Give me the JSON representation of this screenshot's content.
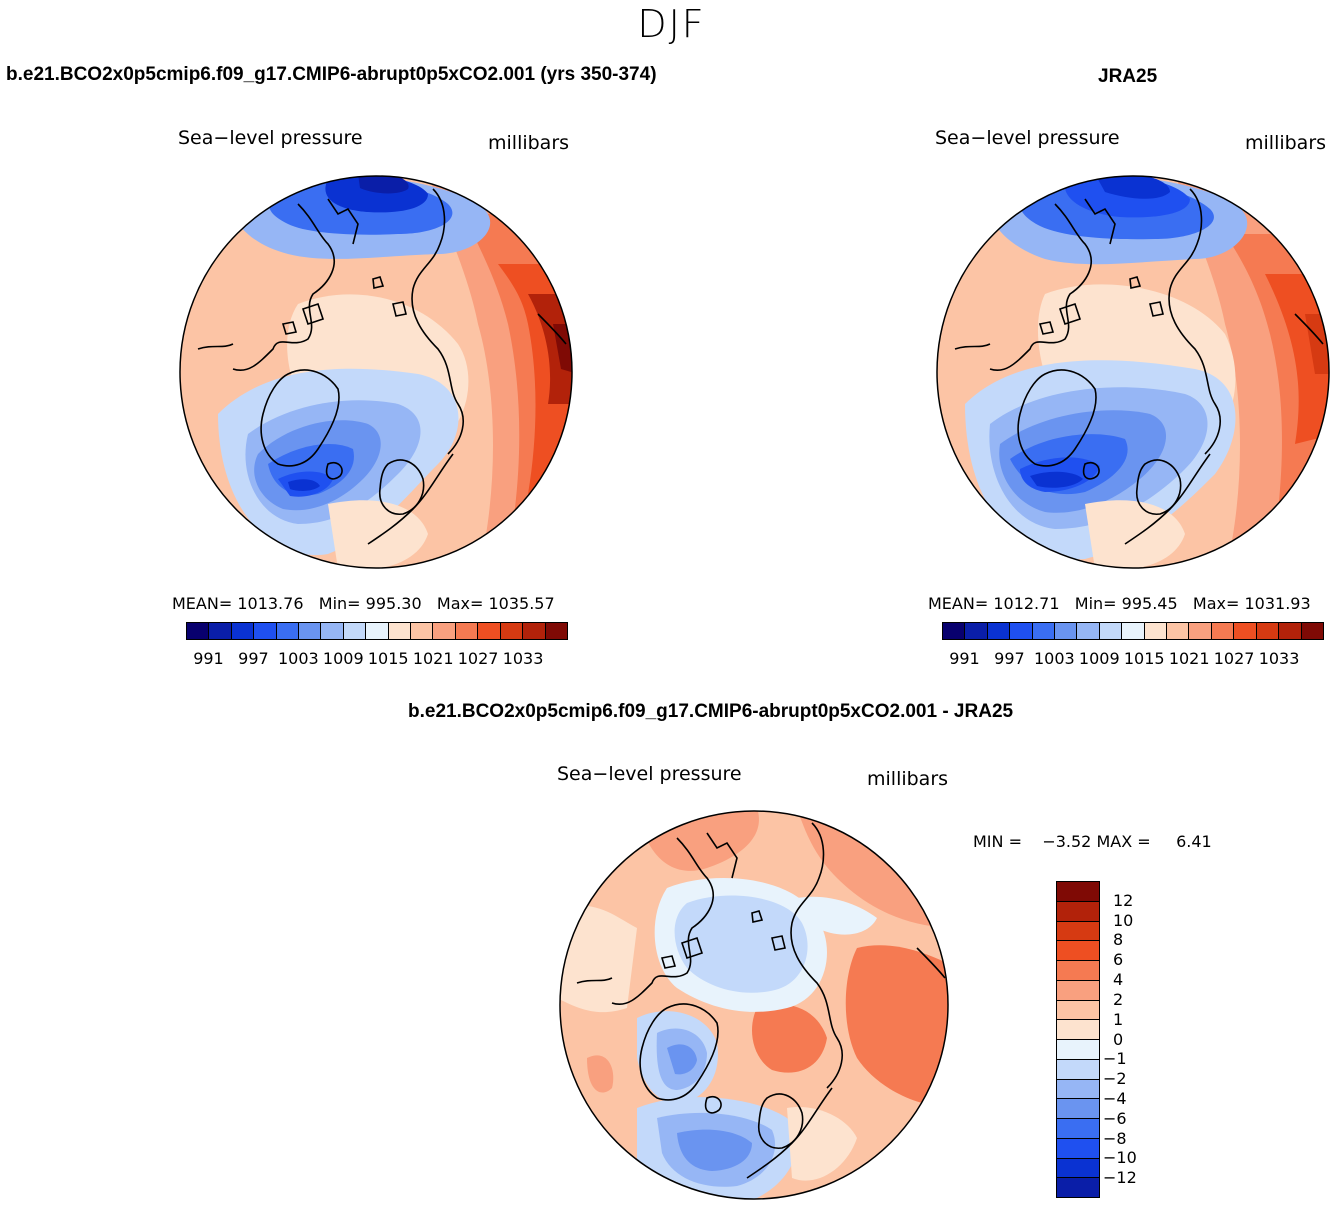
{
  "figure": {
    "season": "DJF",
    "left_title": "b.e21.BCO2x0p5cmip6.f09_g17.CMIP6-abrupt0p5xCO2.001 (yrs 350-374)",
    "right_title": "JRA25",
    "diff_title": "b.e21.BCO2x0p5cmip6.f09_g17.CMIP6-abrupt0p5xCO2.001 - JRA25"
  },
  "chart_data": [
    {
      "type": "heatmap",
      "projection": "polar-stereographic (Northern Hemisphere)",
      "variable": "Sea−level pressure",
      "units": "millibars",
      "stats": {
        "mean_label": "MEAN=",
        "mean": "1013.76",
        "min_label": "Min=",
        "min": "995.30",
        "max_label": "Max=",
        "max": "1035.57"
      },
      "contour_levels": [
        991,
        994,
        997,
        1000,
        1003,
        1006,
        1009,
        1012,
        1015,
        1018,
        1021,
        1024,
        1027,
        1030,
        1033
      ],
      "tick_labels": [
        "991",
        "997",
        "1003",
        "1009",
        "1015",
        "1021",
        "1027",
        "1033"
      ],
      "colors": [
        "#08006e",
        "#0a1ea8",
        "#0a32d2",
        "#1f50f0",
        "#3a6ef2",
        "#6a94f0",
        "#96b6f5",
        "#c3d9fa",
        "#e8f3fc",
        "#fde3cf",
        "#fcc4a5",
        "#f9a07f",
        "#f57a52",
        "#ee4f22",
        "#d63a12",
        "#b2220a",
        "#7f0a05"
      ]
    },
    {
      "type": "heatmap",
      "projection": "polar-stereographic (Northern Hemisphere)",
      "variable": "Sea−level pressure",
      "units": "millibars",
      "stats": {
        "mean_label": "MEAN=",
        "mean": "1012.71",
        "min_label": "Min=",
        "min": "995.45",
        "max_label": "Max=",
        "max": "1031.93"
      },
      "contour_levels": [
        991,
        994,
        997,
        1000,
        1003,
        1006,
        1009,
        1012,
        1015,
        1018,
        1021,
        1024,
        1027,
        1030,
        1033
      ],
      "tick_labels": [
        "991",
        "997",
        "1003",
        "1009",
        "1015",
        "1021",
        "1027",
        "1033"
      ],
      "colors": [
        "#08006e",
        "#0a1ea8",
        "#0a32d2",
        "#1f50f0",
        "#3a6ef2",
        "#6a94f0",
        "#96b6f5",
        "#c3d9fa",
        "#e8f3fc",
        "#fde3cf",
        "#fcc4a5",
        "#f9a07f",
        "#f57a52",
        "#ee4f22",
        "#d63a12",
        "#b2220a",
        "#7f0a05"
      ]
    },
    {
      "type": "heatmap",
      "projection": "polar-stereographic (Northern Hemisphere)",
      "variable": "Sea−level pressure",
      "units": "millibars",
      "stats": {
        "min_label": "MIN =",
        "min": "−3.52",
        "max_label": "MAX =",
        "max": "6.41"
      },
      "contour_levels": [
        -12,
        -10,
        -8,
        -6,
        -4,
        -2,
        -1,
        0,
        1,
        2,
        4,
        6,
        8,
        10,
        12
      ],
      "tick_labels": [
        "12",
        "10",
        "8",
        "6",
        "4",
        "2",
        "1",
        "0",
        "−1",
        "−2",
        "−4",
        "−6",
        "−8",
        "−10",
        "−12"
      ],
      "colors": [
        "#7f0a05",
        "#b2220a",
        "#d63a12",
        "#ee4f22",
        "#f57a52",
        "#f9a07f",
        "#fcc4a5",
        "#fde3cf",
        "#e8f3fc",
        "#c3d9fa",
        "#96b6f5",
        "#6a94f0",
        "#3a6ef2",
        "#1f50f0",
        "#0a32d2",
        "#0a1ea8"
      ]
    }
  ]
}
